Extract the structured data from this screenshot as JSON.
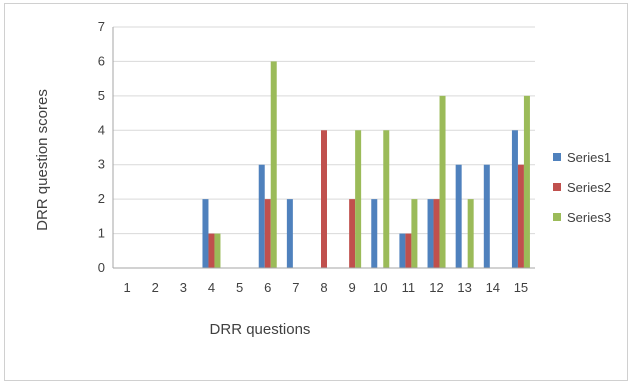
{
  "chart_data": {
    "type": "bar",
    "xlabel": "DRR questions",
    "ylabel": "DRR question scores",
    "ylim": [
      0,
      7
    ],
    "yticks": [
      0,
      1,
      2,
      3,
      4,
      5,
      6,
      7
    ],
    "grid": true,
    "legend_position": "right",
    "categories": [
      "1",
      "2",
      "3",
      "4",
      "5",
      "6",
      "7",
      "8",
      "9",
      "10",
      "11",
      "12",
      "13",
      "14",
      "15"
    ],
    "series": [
      {
        "name": "Series1",
        "color": "#4f81bd",
        "values": [
          0,
          0,
          0,
          2,
          0,
          3,
          2,
          0,
          0,
          2,
          1,
          2,
          3,
          3,
          4
        ]
      },
      {
        "name": "Series2",
        "color": "#c0504d",
        "values": [
          0,
          0,
          0,
          1,
          0,
          2,
          0,
          4,
          2,
          0,
          1,
          2,
          0,
          0,
          3
        ]
      },
      {
        "name": "Series3",
        "color": "#9bbb59",
        "values": [
          0,
          0,
          0,
          1,
          0,
          6,
          0,
          0,
          4,
          4,
          2,
          5,
          2,
          0,
          5
        ]
      }
    ]
  }
}
